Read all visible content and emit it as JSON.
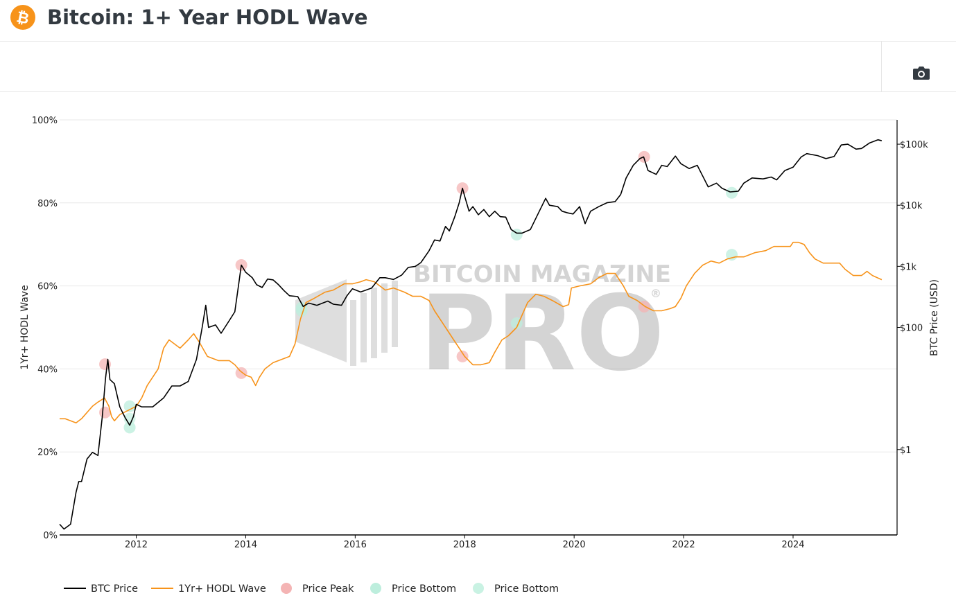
{
  "header": {
    "title": "Bitcoin: 1+ Year HODL Wave",
    "logo_icon": "bitcoin-logo-icon",
    "brand_color": "#f7931a"
  },
  "toolbar": {
    "camera_icon": "camera-icon"
  },
  "watermark": {
    "line1": "BITCOIN MAGAZINE",
    "line2": "PRO",
    "mark": "®"
  },
  "chart_data": {
    "type": "line",
    "title": "",
    "xlabel": "",
    "ylabel_left": "1Yr+ HODL Wave",
    "ylabel_right": "BTC Price (USD)",
    "x_range": [
      2010.6,
      2025.9
    ],
    "x_ticks": [
      {
        "value": 2012,
        "label": "2012"
      },
      {
        "value": 2014,
        "label": "2014"
      },
      {
        "value": 2016,
        "label": "2016"
      },
      {
        "value": 2018,
        "label": "2018"
      },
      {
        "value": 2020,
        "label": "2020"
      },
      {
        "value": 2022,
        "label": "2022"
      },
      {
        "value": 2024,
        "label": "2024"
      }
    ],
    "y_left": {
      "range": [
        0,
        100
      ],
      "ticks": [
        {
          "value": 0,
          "label": "0%"
        },
        {
          "value": 20,
          "label": "20%"
        },
        {
          "value": 40,
          "label": "40%"
        },
        {
          "value": 60,
          "label": "60%"
        },
        {
          "value": 80,
          "label": "80%"
        },
        {
          "value": 100,
          "label": "100%"
        }
      ]
    },
    "y_right": {
      "scale": "log",
      "range": [
        0.04,
        250000
      ],
      "ticks": [
        {
          "value": 1,
          "label": "$1"
        },
        {
          "value": 100,
          "label": "$100"
        },
        {
          "value": 1000,
          "label": "$1k"
        },
        {
          "value": 10000,
          "label": "$10k"
        },
        {
          "value": 100000,
          "label": "$100k"
        }
      ]
    },
    "grid": true,
    "legend_position": "bottom-left",
    "series": [
      {
        "name": "BTC Price",
        "axis": "right",
        "color": "#000000",
        "points": [
          [
            2010.6,
            0.06
          ],
          [
            2010.68,
            0.05
          ],
          [
            2010.8,
            0.06
          ],
          [
            2010.9,
            0.2
          ],
          [
            2010.95,
            0.3
          ],
          [
            2011.0,
            0.3
          ],
          [
            2011.1,
            0.7
          ],
          [
            2011.2,
            0.9
          ],
          [
            2011.3,
            0.8
          ],
          [
            2011.38,
            3.5
          ],
          [
            2011.44,
            15
          ],
          [
            2011.48,
            30
          ],
          [
            2011.52,
            14
          ],
          [
            2011.6,
            12
          ],
          [
            2011.7,
            5
          ],
          [
            2011.8,
            3.3
          ],
          [
            2011.88,
            2.5
          ],
          [
            2011.95,
            3.5
          ],
          [
            2012.0,
            5.5
          ],
          [
            2012.1,
            5
          ],
          [
            2012.3,
            5
          ],
          [
            2012.5,
            7
          ],
          [
            2012.65,
            11
          ],
          [
            2012.8,
            11
          ],
          [
            2012.95,
            13
          ],
          [
            2013.1,
            30
          ],
          [
            2013.2,
            95
          ],
          [
            2013.27,
            230
          ],
          [
            2013.32,
            100
          ],
          [
            2013.45,
            110
          ],
          [
            2013.55,
            80
          ],
          [
            2013.7,
            130
          ],
          [
            2013.8,
            180
          ],
          [
            2013.87,
            500
          ],
          [
            2013.92,
            1050
          ],
          [
            2014.0,
            800
          ],
          [
            2014.12,
            650
          ],
          [
            2014.2,
            500
          ],
          [
            2014.3,
            450
          ],
          [
            2014.4,
            620
          ],
          [
            2014.5,
            600
          ],
          [
            2014.6,
            500
          ],
          [
            2014.7,
            400
          ],
          [
            2014.8,
            330
          ],
          [
            2014.95,
            320
          ],
          [
            2015.05,
            220
          ],
          [
            2015.15,
            250
          ],
          [
            2015.3,
            230
          ],
          [
            2015.5,
            270
          ],
          [
            2015.6,
            240
          ],
          [
            2015.75,
            230
          ],
          [
            2015.85,
            330
          ],
          [
            2015.95,
            430
          ],
          [
            2016.1,
            380
          ],
          [
            2016.3,
            440
          ],
          [
            2016.45,
            650
          ],
          [
            2016.55,
            650
          ],
          [
            2016.7,
            610
          ],
          [
            2016.85,
            720
          ],
          [
            2016.97,
            960
          ],
          [
            2017.1,
            1000
          ],
          [
            2017.2,
            1150
          ],
          [
            2017.35,
            1800
          ],
          [
            2017.45,
            2700
          ],
          [
            2017.55,
            2600
          ],
          [
            2017.65,
            4500
          ],
          [
            2017.72,
            3800
          ],
          [
            2017.82,
            6500
          ],
          [
            2017.9,
            11000
          ],
          [
            2017.96,
            19000
          ],
          [
            2018.0,
            14000
          ],
          [
            2018.08,
            8000
          ],
          [
            2018.15,
            9500
          ],
          [
            2018.25,
            7000
          ],
          [
            2018.35,
            8500
          ],
          [
            2018.45,
            6500
          ],
          [
            2018.55,
            8000
          ],
          [
            2018.65,
            6500
          ],
          [
            2018.75,
            6400
          ],
          [
            2018.85,
            4000
          ],
          [
            2018.95,
            3500
          ],
          [
            2019.05,
            3500
          ],
          [
            2019.2,
            4000
          ],
          [
            2019.35,
            7500
          ],
          [
            2019.48,
            13000
          ],
          [
            2019.55,
            10000
          ],
          [
            2019.7,
            9500
          ],
          [
            2019.78,
            8000
          ],
          [
            2019.88,
            7500
          ],
          [
            2019.98,
            7200
          ],
          [
            2020.1,
            9500
          ],
          [
            2020.2,
            5000
          ],
          [
            2020.3,
            8000
          ],
          [
            2020.45,
            9500
          ],
          [
            2020.6,
            11000
          ],
          [
            2020.75,
            11500
          ],
          [
            2020.85,
            15000
          ],
          [
            2020.95,
            28000
          ],
          [
            2021.08,
            45000
          ],
          [
            2021.2,
            58000
          ],
          [
            2021.27,
            62000
          ],
          [
            2021.35,
            37000
          ],
          [
            2021.5,
            32000
          ],
          [
            2021.6,
            45000
          ],
          [
            2021.7,
            43000
          ],
          [
            2021.85,
            64000
          ],
          [
            2021.95,
            48000
          ],
          [
            2022.1,
            40000
          ],
          [
            2022.25,
            45000
          ],
          [
            2022.35,
            30000
          ],
          [
            2022.45,
            20000
          ],
          [
            2022.6,
            23000
          ],
          [
            2022.7,
            19000
          ],
          [
            2022.85,
            16500
          ],
          [
            2023.0,
            17000
          ],
          [
            2023.1,
            23000
          ],
          [
            2023.25,
            28000
          ],
          [
            2023.45,
            27000
          ],
          [
            2023.6,
            29000
          ],
          [
            2023.7,
            26000
          ],
          [
            2023.85,
            37000
          ],
          [
            2024.0,
            42000
          ],
          [
            2024.15,
            62000
          ],
          [
            2024.25,
            70000
          ],
          [
            2024.45,
            65000
          ],
          [
            2024.6,
            58000
          ],
          [
            2024.75,
            63000
          ],
          [
            2024.88,
            97000
          ],
          [
            2025.0,
            100000
          ],
          [
            2025.15,
            83000
          ],
          [
            2025.25,
            85000
          ],
          [
            2025.4,
            105000
          ],
          [
            2025.55,
            118000
          ],
          [
            2025.62,
            114000
          ]
        ]
      },
      {
        "name": "1Yr+ HODL Wave",
        "axis": "left",
        "color": "#f7931a",
        "points": [
          [
            2010.6,
            28
          ],
          [
            2010.7,
            28
          ],
          [
            2010.8,
            27.5
          ],
          [
            2010.9,
            27
          ],
          [
            2011.0,
            28
          ],
          [
            2011.1,
            29.5
          ],
          [
            2011.2,
            31
          ],
          [
            2011.3,
            32
          ],
          [
            2011.42,
            33
          ],
          [
            2011.5,
            31
          ],
          [
            2011.55,
            28.5
          ],
          [
            2011.6,
            27.5
          ],
          [
            2011.7,
            29
          ],
          [
            2011.85,
            30
          ],
          [
            2012.0,
            31
          ],
          [
            2012.1,
            33
          ],
          [
            2012.2,
            36
          ],
          [
            2012.3,
            38
          ],
          [
            2012.4,
            40
          ],
          [
            2012.5,
            45
          ],
          [
            2012.6,
            47
          ],
          [
            2012.8,
            45
          ],
          [
            2012.95,
            47
          ],
          [
            2013.05,
            48.5
          ],
          [
            2013.15,
            46.5
          ],
          [
            2013.3,
            43
          ],
          [
            2013.5,
            42
          ],
          [
            2013.7,
            42
          ],
          [
            2013.8,
            41
          ],
          [
            2013.9,
            39.5
          ],
          [
            2014.0,
            38.5
          ],
          [
            2014.1,
            38
          ],
          [
            2014.18,
            36
          ],
          [
            2014.25,
            38
          ],
          [
            2014.35,
            40
          ],
          [
            2014.5,
            41.5
          ],
          [
            2014.7,
            42.5
          ],
          [
            2014.8,
            43
          ],
          [
            2014.9,
            46
          ],
          [
            2015.0,
            52
          ],
          [
            2015.1,
            56
          ],
          [
            2015.25,
            57
          ],
          [
            2015.45,
            58.5
          ],
          [
            2015.6,
            59
          ],
          [
            2015.8,
            60.5
          ],
          [
            2015.95,
            60.5
          ],
          [
            2016.1,
            61
          ],
          [
            2016.2,
            61.5
          ],
          [
            2016.35,
            61
          ],
          [
            2016.45,
            60
          ],
          [
            2016.55,
            59
          ],
          [
            2016.7,
            59.5
          ],
          [
            2016.9,
            58.5
          ],
          [
            2017.05,
            57.5
          ],
          [
            2017.2,
            57.5
          ],
          [
            2017.35,
            56.5
          ],
          [
            2017.45,
            54
          ],
          [
            2017.55,
            52
          ],
          [
            2017.7,
            49
          ],
          [
            2017.8,
            47
          ],
          [
            2017.9,
            45
          ],
          [
            2018.0,
            43
          ],
          [
            2018.15,
            41
          ],
          [
            2018.3,
            41
          ],
          [
            2018.45,
            41.5
          ],
          [
            2018.55,
            44
          ],
          [
            2018.68,
            47
          ],
          [
            2018.8,
            48
          ],
          [
            2018.95,
            50
          ],
          [
            2019.05,
            53
          ],
          [
            2019.15,
            56
          ],
          [
            2019.3,
            58
          ],
          [
            2019.45,
            57.5
          ],
          [
            2019.6,
            56.5
          ],
          [
            2019.8,
            55
          ],
          [
            2019.9,
            55.5
          ],
          [
            2019.95,
            59.5
          ],
          [
            2020.1,
            60
          ],
          [
            2020.3,
            60.5
          ],
          [
            2020.45,
            62
          ],
          [
            2020.6,
            63
          ],
          [
            2020.75,
            63
          ],
          [
            2020.9,
            60
          ],
          [
            2021.0,
            57.5
          ],
          [
            2021.15,
            56.5
          ],
          [
            2021.3,
            55
          ],
          [
            2021.45,
            54
          ],
          [
            2021.6,
            54
          ],
          [
            2021.75,
            54.5
          ],
          [
            2021.85,
            55
          ],
          [
            2021.95,
            57
          ],
          [
            2022.05,
            60
          ],
          [
            2022.2,
            63
          ],
          [
            2022.35,
            65
          ],
          [
            2022.5,
            66
          ],
          [
            2022.65,
            65.5
          ],
          [
            2022.8,
            66.5
          ],
          [
            2022.95,
            67
          ],
          [
            2023.1,
            67
          ],
          [
            2023.3,
            68
          ],
          [
            2023.5,
            68.5
          ],
          [
            2023.65,
            69.5
          ],
          [
            2023.8,
            69.5
          ],
          [
            2023.95,
            69.5
          ],
          [
            2024.0,
            70.5
          ],
          [
            2024.1,
            70.5
          ],
          [
            2024.2,
            70
          ],
          [
            2024.3,
            68
          ],
          [
            2024.4,
            66.5
          ],
          [
            2024.55,
            65.5
          ],
          [
            2024.75,
            65.5
          ],
          [
            2024.85,
            65.5
          ],
          [
            2024.95,
            64
          ],
          [
            2025.1,
            62.5
          ],
          [
            2025.25,
            62.5
          ],
          [
            2025.35,
            63.5
          ],
          [
            2025.45,
            62.5
          ],
          [
            2025.62,
            61.5
          ]
        ]
      },
      {
        "name": "Price Peak",
        "type": "scatter",
        "color": "#f4b4b4",
        "points": [
          {
            "x": 2011.43,
            "price": 25,
            "hodl": 29.5
          },
          {
            "x": 2013.92,
            "price": 1050,
            "hodl": 39
          },
          {
            "x": 2017.96,
            "price": 19000,
            "hodl": 43
          },
          {
            "x": 2021.28,
            "price": 62000,
            "hodl": 55
          }
        ]
      },
      {
        "name": "Price Bottom",
        "type": "scatter",
        "color": "#bdeedd",
        "points": [
          {
            "x": 2011.88,
            "price": 2.3,
            "hodl": 31
          },
          {
            "x": 2015.02,
            "price": 210,
            "hodl": 54
          },
          {
            "x": 2018.95,
            "price": 3300,
            "hodl": 51
          },
          {
            "x": 2022.88,
            "price": 16000,
            "hodl": 67.5
          }
        ]
      },
      {
        "name": "Price Bottom",
        "type": "scatter",
        "color": "#c9f2e3",
        "points": [
          {
            "x": 2011.88,
            "price": 2.3,
            "hodl": 28
          }
        ]
      }
    ],
    "legend": [
      {
        "label": "BTC Price",
        "kind": "line",
        "color": "#000000"
      },
      {
        "label": "1Yr+ HODL Wave",
        "kind": "line",
        "color": "#f7931a"
      },
      {
        "label": "Price Peak",
        "kind": "dot",
        "color": "#f4b4b4"
      },
      {
        "label": "Price Bottom",
        "kind": "dot",
        "color": "#bdeedd"
      },
      {
        "label": "Price Bottom",
        "kind": "dot",
        "color": "#c9f2e3"
      }
    ]
  }
}
